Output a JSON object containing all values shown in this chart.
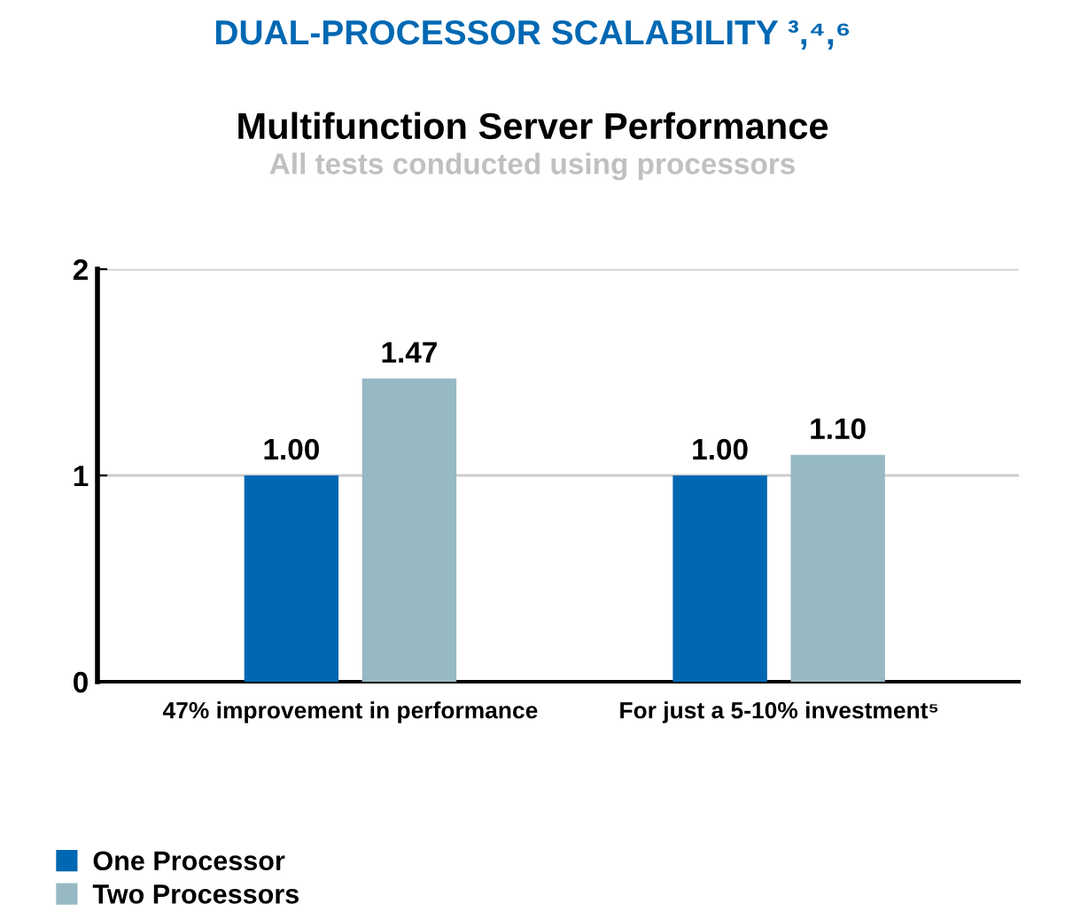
{
  "chart_data": {
    "type": "bar",
    "title": "DUAL-PROCESSOR SCALABILITY ³,⁴,⁶",
    "subtitle": "Multifunction Server Performance",
    "annotations": [
      "All tests conducted using processors"
    ],
    "categories": [
      "47% improvement in performance",
      "For just a 5-10% investment⁵"
    ],
    "series": [
      {
        "name": "One Processor",
        "color": "#0068b3",
        "values": [
          1.0,
          1.0
        ],
        "value_labels": [
          "1.00",
          "1.00"
        ]
      },
      {
        "name": "Two Processors",
        "color": "#96b9c3",
        "values": [
          1.47,
          1.1
        ],
        "value_labels": [
          "1.47",
          "1.10"
        ]
      }
    ],
    "ylim": [
      0,
      2
    ],
    "yticks": [
      0,
      1,
      2
    ],
    "grid": "y",
    "legend": "bottom left"
  }
}
